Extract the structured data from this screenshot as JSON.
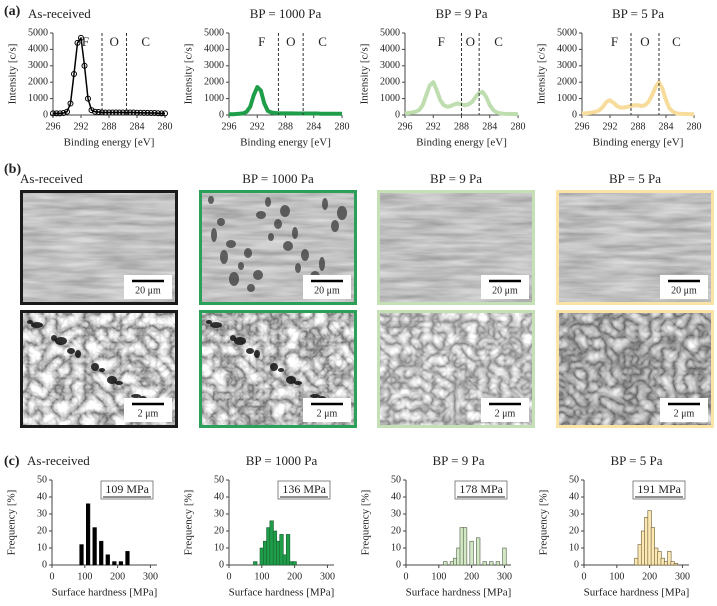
{
  "panel_labels": [
    "(a)",
    "(b)",
    "(c)"
  ],
  "chart_data": [
    {
      "type": "line",
      "title": "As-received",
      "xlabel": "Binding energy [eV]",
      "ylabel": "Intensity [c/s]",
      "x": [
        296,
        295.5,
        295,
        294.5,
        294,
        293.5,
        293,
        292.5,
        292,
        291.5,
        291,
        290.5,
        290,
        289.5,
        289,
        288.5,
        288,
        287.5,
        287,
        286.5,
        286,
        285.5,
        285,
        284.5,
        284,
        283.5,
        283,
        282.5,
        282,
        281.5,
        281,
        280.5,
        280
      ],
      "series": [
        {
          "color": "#000000",
          "values": [
            100,
            100,
            100,
            120,
            200,
            700,
            2500,
            4400,
            4700,
            3000,
            1000,
            300,
            200,
            180,
            160,
            150,
            150,
            150,
            150,
            150,
            150,
            150,
            150,
            150,
            140,
            140,
            130,
            130,
            120,
            120,
            110,
            100,
            100
          ]
        }
      ],
      "markers": true,
      "xlim": [
        296,
        280
      ],
      "xticks": [
        296,
        292,
        288,
        284,
        280
      ],
      "ylim": [
        0,
        5000
      ],
      "yticks": [
        0,
        1000,
        2000,
        3000,
        4000,
        5000
      ],
      "dividers": [
        289,
        285.5
      ],
      "regions": [
        "F",
        "O",
        "C"
      ]
    },
    {
      "type": "line",
      "title": "BP = 1000 Pa",
      "xlabel": "Binding energy [eV]",
      "ylabel": "Intensity [c/s]",
      "x": [
        296,
        295.5,
        295,
        294.5,
        294,
        293.5,
        293,
        292.5,
        292,
        291.5,
        291,
        290.5,
        290,
        289.5,
        289,
        288.5,
        288,
        287.5,
        287,
        286.5,
        286,
        285.5,
        285,
        284.5,
        284,
        283.5,
        283,
        282.5,
        282,
        281.5,
        281,
        280.5,
        280
      ],
      "series": [
        {
          "color": "#1f9e4a",
          "values": [
            50,
            50,
            60,
            80,
            100,
            200,
            500,
            1200,
            1700,
            1500,
            700,
            250,
            150,
            120,
            100,
            100,
            100,
            100,
            100,
            90,
            90,
            90,
            90,
            90,
            90,
            90,
            80,
            80,
            80,
            80,
            80,
            80,
            80
          ]
        }
      ],
      "markers": false,
      "xlim": [
        296,
        280
      ],
      "xticks": [
        296,
        292,
        288,
        284,
        280
      ],
      "ylim": [
        0,
        5000
      ],
      "yticks": [
        0,
        1000,
        2000,
        3000,
        4000,
        5000
      ],
      "dividers": [
        289,
        285.5
      ],
      "regions": [
        "F",
        "O",
        "C"
      ]
    },
    {
      "type": "line",
      "title": "BP = 9 Pa",
      "xlabel": "Binding energy [eV]",
      "ylabel": "Intensity [c/s]",
      "x": [
        296,
        295.5,
        295,
        294.5,
        294,
        293.5,
        293,
        292.5,
        292,
        291.5,
        291,
        290.5,
        290,
        289.5,
        289,
        288.5,
        288,
        287.5,
        287,
        286.5,
        286,
        285.5,
        285,
        284.5,
        284,
        283.5,
        283,
        282.5,
        282,
        281.5,
        281,
        280.5,
        280
      ],
      "series": [
        {
          "color": "#bfdeb0",
          "values": [
            100,
            120,
            150,
            200,
            300,
            600,
            1200,
            1800,
            2000,
            1500,
            900,
            600,
            500,
            550,
            650,
            700,
            650,
            600,
            650,
            800,
            1100,
            1350,
            1400,
            1100,
            600,
            300,
            150,
            100,
            80,
            70,
            60,
            60,
            50
          ]
        }
      ],
      "markers": false,
      "xlim": [
        296,
        280
      ],
      "xticks": [
        296,
        292,
        288,
        284,
        280
      ],
      "ylim": [
        0,
        5000
      ],
      "yticks": [
        0,
        1000,
        2000,
        3000,
        4000,
        5000
      ],
      "dividers": [
        288,
        285.5
      ],
      "regions": [
        "F",
        "O",
        "C"
      ]
    },
    {
      "type": "line",
      "title": "BP = 5 Pa",
      "xlabel": "Binding energy [eV]",
      "ylabel": "Intensity [c/s]",
      "x": [
        296,
        295.5,
        295,
        294.5,
        294,
        293.5,
        293,
        292.5,
        292,
        291.5,
        291,
        290.5,
        290,
        289.5,
        289,
        288.5,
        288,
        287.5,
        287,
        286.5,
        286,
        285.5,
        285,
        284.5,
        284,
        283.5,
        283,
        282.5,
        282,
        281.5,
        281,
        280.5,
        280
      ],
      "series": [
        {
          "color": "#f7dc9c",
          "values": [
            100,
            100,
            120,
            150,
            200,
            300,
            500,
            800,
            900,
            750,
            550,
            450,
            450,
            500,
            550,
            600,
            600,
            550,
            600,
            800,
            1200,
            1700,
            2000,
            1600,
            900,
            400,
            200,
            100,
            80,
            70,
            60,
            50,
            50
          ]
        }
      ],
      "markers": false,
      "xlim": [
        296,
        280
      ],
      "xticks": [
        296,
        292,
        288,
        284,
        280
      ],
      "ylim": [
        0,
        5000
      ],
      "yticks": [
        0,
        1000,
        2000,
        3000,
        4000,
        5000
      ],
      "dividers": [
        289,
        285
      ],
      "regions": [
        "F",
        "O",
        "C"
      ]
    },
    {
      "type": "bar",
      "title": "As-received",
      "xlabel": "Surface hardness  [MPa]",
      "ylabel": "Frequency [%]",
      "annotation": "109 MPa",
      "x": [
        90,
        110,
        130,
        150,
        170,
        190,
        210,
        230
      ],
      "values": [
        12,
        36,
        22,
        14,
        6,
        2,
        2,
        8
      ],
      "color": "#000000",
      "edgecolor": "#000000",
      "xlim": [
        0,
        320
      ],
      "xticks": [
        0,
        100,
        200,
        300
      ],
      "ylim": [
        0,
        50
      ],
      "yticks": [
        0,
        10,
        20,
        30,
        40,
        50
      ]
    },
    {
      "type": "bar",
      "title": "BP = 1000 Pa",
      "xlabel": "Surface hardness  [MPa]",
      "ylabel": "Frequency [%]",
      "annotation": "136 MPa",
      "x": [
        80,
        100,
        110,
        120,
        130,
        140,
        150,
        160,
        170,
        180,
        190,
        200
      ],
      "values": [
        2,
        10,
        14,
        22,
        26,
        20,
        14,
        18,
        6,
        18,
        2,
        2
      ],
      "color": "#1f9e4a",
      "edgecolor": "#1b5e30",
      "xlim": [
        0,
        320
      ],
      "xticks": [
        0,
        100,
        200,
        300
      ],
      "ylim": [
        0,
        50
      ],
      "yticks": [
        0,
        10,
        20,
        30,
        40,
        50
      ]
    },
    {
      "type": "bar",
      "title": "BP = 9 Pa",
      "xlabel": "Surface hardness  [MPa]",
      "ylabel": "Frequency [%]",
      "annotation": "178 MPa",
      "x": [
        120,
        140,
        150,
        160,
        170,
        180,
        200,
        220,
        240,
        260,
        280,
        300
      ],
      "values": [
        2,
        2,
        4,
        10,
        22,
        22,
        14,
        16,
        2,
        2,
        2,
        10
      ],
      "color": "#d2e8c6",
      "edgecolor": "#4d5e40",
      "xlim": [
        0,
        320
      ],
      "xticks": [
        0,
        100,
        200,
        300
      ],
      "ylim": [
        0,
        50
      ],
      "yticks": [
        0,
        10,
        20,
        30,
        40,
        50
      ]
    },
    {
      "type": "bar",
      "title": "BP = 5 Pa",
      "xlabel": "Surface hardness  [MPa]",
      "ylabel": "Frequency [%]",
      "annotation": "191 MPa",
      "x": [
        160,
        170,
        180,
        190,
        200,
        210,
        220,
        230,
        240,
        250,
        260,
        270,
        280
      ],
      "values": [
        4,
        12,
        20,
        28,
        32,
        22,
        10,
        8,
        4,
        2,
        8,
        2,
        1
      ],
      "color": "#fbe8b4",
      "edgecolor": "#6b5a30",
      "xlim": [
        0,
        320
      ],
      "xticks": [
        0,
        100,
        200,
        300
      ],
      "ylim": [
        0,
        50
      ],
      "yticks": [
        0,
        10,
        20,
        30,
        40,
        50
      ]
    }
  ],
  "sem": {
    "columns": [
      {
        "title": "As-received",
        "scale_top": "20 μm",
        "scale_bottom": "2 μm",
        "border": "#1a1a1a"
      },
      {
        "title": "BP = 1000 Pa",
        "scale_top": "20 μm",
        "scale_bottom": "2 μm",
        "border": "#2ca05a"
      },
      {
        "title": "BP = 9 Pa",
        "scale_top": "20 μm",
        "scale_bottom": "2 μm",
        "border": "#c5e0b4"
      },
      {
        "title": "BP = 5 Pa",
        "scale_top": "20 μm",
        "scale_bottom": "2 μm",
        "border": "#fbe3a8"
      }
    ]
  }
}
